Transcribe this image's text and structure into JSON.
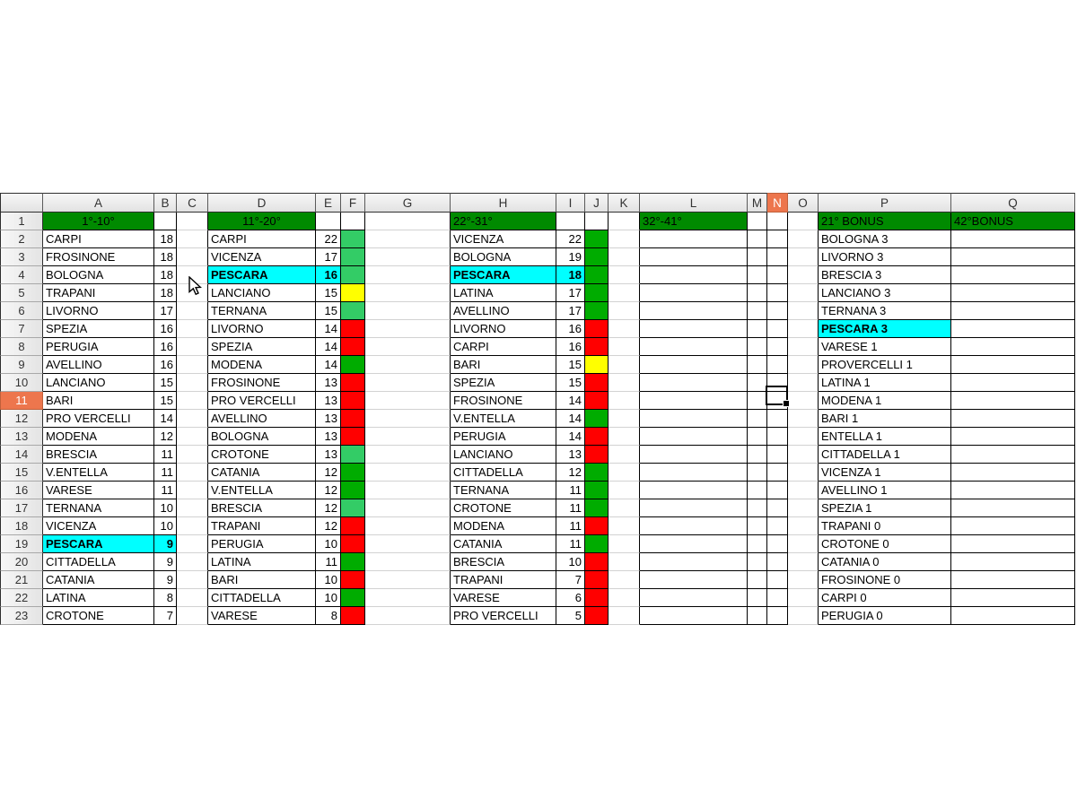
{
  "app": {
    "kind": "spreadsheet",
    "column_headers": [
      "A",
      "B",
      "C",
      "D",
      "E",
      "F",
      "G",
      "H",
      "I",
      "J",
      "K",
      "L",
      "M",
      "N",
      "O",
      "P",
      "Q"
    ],
    "row_numbers": [
      "1",
      "2",
      "3",
      "4",
      "5",
      "6",
      "7",
      "8",
      "9",
      "10",
      "11",
      "12",
      "13",
      "14",
      "15",
      "16",
      "17",
      "18",
      "19",
      "20",
      "21",
      "22",
      "23"
    ],
    "selected_column": "N",
    "selected_row": "11",
    "highlighted_team": "PESCARA"
  },
  "colors": {
    "section_header_green": "#008a00",
    "light_green": "#33cc66",
    "dark_green": "#00ac00",
    "red": "#ff0000",
    "yellow": "#ffff00",
    "highlight_cyan": "#00ffff",
    "selection_orange": "#ed764d"
  },
  "sections": [
    {
      "title": "1°-10°",
      "teams": [
        {
          "n": "CARPI",
          "v": "18"
        },
        {
          "n": "FROSINONE",
          "v": "18"
        },
        {
          "n": "BOLOGNA",
          "v": "18"
        },
        {
          "n": "TRAPANI",
          "v": "18"
        },
        {
          "n": "LIVORNO",
          "v": "17"
        },
        {
          "n": "SPEZIA",
          "v": "16"
        },
        {
          "n": "PERUGIA",
          "v": "16"
        },
        {
          "n": "AVELLINO",
          "v": "16"
        },
        {
          "n": "LANCIANO",
          "v": "15"
        },
        {
          "n": "BARI",
          "v": "15"
        },
        {
          "n": "PRO VERCELLI",
          "v": "14"
        },
        {
          "n": "MODENA",
          "v": "12"
        },
        {
          "n": "BRESCIA",
          "v": "11"
        },
        {
          "n": "V.ENTELLA",
          "v": "11"
        },
        {
          "n": "VARESE",
          "v": "11"
        },
        {
          "n": "TERNANA",
          "v": "10"
        },
        {
          "n": "VICENZA",
          "v": "10"
        },
        {
          "n": "PESCARA",
          "v": "9",
          "hl": true
        },
        {
          "n": "CITTADELLA",
          "v": "9"
        },
        {
          "n": "CATANIA",
          "v": "9"
        },
        {
          "n": "LATINA",
          "v": "8"
        },
        {
          "n": "CROTONE",
          "v": "7"
        }
      ]
    },
    {
      "title": "11°-20°",
      "teams": [
        {
          "n": "CARPI",
          "v": "22",
          "c": "light_green"
        },
        {
          "n": "VICENZA",
          "v": "17",
          "c": "light_green"
        },
        {
          "n": "PESCARA",
          "v": "16",
          "c": "light_green",
          "hl": true
        },
        {
          "n": "LANCIANO",
          "v": "15",
          "c": "yellow"
        },
        {
          "n": "TERNANA",
          "v": "15",
          "c": "light_green"
        },
        {
          "n": "LIVORNO",
          "v": "14",
          "c": "red"
        },
        {
          "n": "SPEZIA",
          "v": "14",
          "c": "red"
        },
        {
          "n": "MODENA",
          "v": "14",
          "c": "dark_green"
        },
        {
          "n": "FROSINONE",
          "v": "13",
          "c": "red"
        },
        {
          "n": "PRO VERCELLI",
          "v": "13",
          "c": "red"
        },
        {
          "n": "AVELLINO",
          "v": "13",
          "c": "red"
        },
        {
          "n": "BOLOGNA",
          "v": "13",
          "c": "red"
        },
        {
          "n": "CROTONE",
          "v": "13",
          "c": "light_green"
        },
        {
          "n": "CATANIA",
          "v": "12",
          "c": "dark_green"
        },
        {
          "n": "V.ENTELLA",
          "v": "12",
          "c": "dark_green"
        },
        {
          "n": "BRESCIA",
          "v": "12",
          "c": "light_green"
        },
        {
          "n": "TRAPANI",
          "v": "12",
          "c": "red"
        },
        {
          "n": "PERUGIA",
          "v": "10",
          "c": "red"
        },
        {
          "n": "LATINA",
          "v": "11",
          "c": "dark_green"
        },
        {
          "n": "BARI",
          "v": "10",
          "c": "red"
        },
        {
          "n": "CITTADELLA",
          "v": "10",
          "c": "dark_green"
        },
        {
          "n": "VARESE",
          "v": "8",
          "c": "red"
        }
      ]
    },
    {
      "title": "22°-31°",
      "teams": [
        {
          "n": "VICENZA",
          "v": "22",
          "c": "dark_green"
        },
        {
          "n": "BOLOGNA",
          "v": "19",
          "c": "dark_green"
        },
        {
          "n": "PESCARA",
          "v": "18",
          "c": "dark_green",
          "hl": true
        },
        {
          "n": "LATINA",
          "v": "17",
          "c": "dark_green"
        },
        {
          "n": "AVELLINO",
          "v": "17",
          "c": "dark_green"
        },
        {
          "n": "LIVORNO",
          "v": "16",
          "c": "red"
        },
        {
          "n": "CARPI",
          "v": "16",
          "c": "red"
        },
        {
          "n": "BARI",
          "v": "15",
          "c": "yellow"
        },
        {
          "n": "SPEZIA",
          "v": "15",
          "c": "red"
        },
        {
          "n": "FROSINONE",
          "v": "14",
          "c": "red"
        },
        {
          "n": "V.ENTELLA",
          "v": "14",
          "c": "dark_green"
        },
        {
          "n": "PERUGIA",
          "v": "14",
          "c": "red"
        },
        {
          "n": "LANCIANO",
          "v": "13",
          "c": "red"
        },
        {
          "n": "CITTADELLA",
          "v": "12",
          "c": "dark_green"
        },
        {
          "n": "TERNANA",
          "v": "11",
          "c": "dark_green"
        },
        {
          "n": "CROTONE",
          "v": "11",
          "c": "dark_green"
        },
        {
          "n": "MODENA",
          "v": "11",
          "c": "red"
        },
        {
          "n": "CATANIA",
          "v": "11",
          "c": "dark_green"
        },
        {
          "n": "BRESCIA",
          "v": "10",
          "c": "red"
        },
        {
          "n": "TRAPANI",
          "v": "7",
          "c": "red"
        },
        {
          "n": "VARESE",
          "v": "6",
          "c": "red"
        },
        {
          "n": "PRO VERCELLI",
          "v": "5",
          "c": "red"
        }
      ]
    },
    {
      "title": "32°-41°",
      "teams": []
    },
    {
      "title": "21° BONUS",
      "teams": [
        {
          "n": "BOLOGNA 3"
        },
        {
          "n": "LIVORNO 3"
        },
        {
          "n": "BRESCIA 3"
        },
        {
          "n": "LANCIANO 3"
        },
        {
          "n": "TERNANA 3"
        },
        {
          "n": "PESCARA 3",
          "hl": true
        },
        {
          "n": "VARESE 1"
        },
        {
          "n": "PROVERCELLI 1"
        },
        {
          "n": "LATINA 1"
        },
        {
          "n": "MODENA 1"
        },
        {
          "n": "BARI 1"
        },
        {
          "n": "ENTELLA 1"
        },
        {
          "n": "CITTADELLA 1"
        },
        {
          "n": "VICENZA 1"
        },
        {
          "n": "AVELLINO 1"
        },
        {
          "n": "SPEZIA 1"
        },
        {
          "n": "TRAPANI 0"
        },
        {
          "n": "CROTONE 0"
        },
        {
          "n": "CATANIA 0"
        },
        {
          "n": "FROSINONE 0"
        },
        {
          "n": "CARPI 0"
        },
        {
          "n": "PERUGIA 0"
        }
      ]
    },
    {
      "title": "42°BONUS",
      "teams": []
    }
  ]
}
